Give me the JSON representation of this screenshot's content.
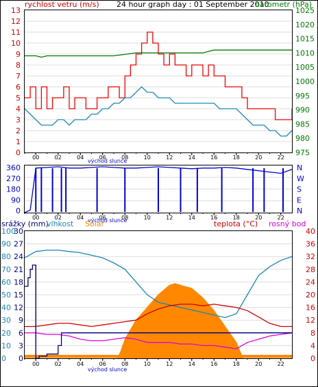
{
  "chart_data": [
    {
      "type": "line",
      "title": "24 hour graph day : 01 September 2010",
      "y_label_left": "rychlost vetru (m/s)",
      "y_label_right": "barometr (hPa)",
      "x_label": "východ slunce",
      "x_ticks": [
        "00",
        "02",
        "04",
        "06",
        "08",
        "10",
        "12",
        "14",
        "16",
        "18",
        "20",
        "22"
      ],
      "ylim_left": [
        0,
        13
      ],
      "ylim_right": [
        975,
        1025
      ],
      "y_ticks_left": [
        "0",
        "1",
        "2",
        "3",
        "4",
        "5",
        "6",
        "7",
        "8",
        "9",
        "10",
        "11",
        "12",
        "13"
      ],
      "y_ticks_right": [
        "975",
        "980",
        "985",
        "990",
        "995",
        "1000",
        "1005",
        "1010",
        "1015",
        "1020",
        "1025"
      ],
      "series": [
        {
          "color": "#ee0000",
          "step": true,
          "x": [
            23.0,
            23.5,
            0,
            0.5,
            1,
            1.5,
            2,
            2.5,
            3,
            3.5,
            4,
            4.5,
            5,
            5.5,
            6,
            6.5,
            7,
            7.5,
            8,
            8.5,
            9,
            9.5,
            10,
            10.5,
            11,
            11.5,
            12,
            12.5,
            13,
            13.5,
            14,
            14.5,
            15,
            15.5,
            16,
            16.5,
            17,
            17.5,
            18,
            18.5,
            19,
            19.5,
            20,
            20.5,
            21,
            21.5,
            22,
            22.5,
            23.0
          ],
          "values": [
            5,
            6,
            4,
            6,
            4,
            5,
            5,
            6,
            4,
            5,
            5,
            4,
            4,
            5,
            5,
            6,
            6,
            5,
            7,
            8,
            9,
            10,
            11,
            10,
            9,
            8,
            9,
            8,
            8,
            7,
            8,
            8,
            7,
            8,
            7,
            7,
            6,
            6,
            6,
            5,
            4,
            4,
            4,
            4,
            4,
            3,
            3,
            3,
            4
          ]
        },
        {
          "color": "#1a86b5",
          "x": [
            23.0,
            23.5,
            0,
            0.5,
            1,
            1.5,
            2,
            2.5,
            3,
            3.5,
            4,
            4.5,
            5,
            5.5,
            6,
            6.5,
            7,
            7.5,
            8,
            8.5,
            9,
            9.5,
            10,
            10.5,
            11,
            11.5,
            12,
            12.5,
            13,
            13.5,
            14,
            14.5,
            15,
            15.5,
            16,
            16.5,
            17,
            17.5,
            18,
            18.5,
            19,
            19.5,
            20,
            20.5,
            21,
            21.5,
            22,
            22.5,
            23.0
          ],
          "values": [
            4,
            3.5,
            3,
            2.5,
            2.5,
            2.5,
            3,
            3,
            2.5,
            3,
            3,
            3,
            3.5,
            3.5,
            4,
            4,
            4.5,
            4.5,
            5,
            5,
            5.5,
            6,
            5.5,
            5.5,
            5,
            5,
            5,
            4.5,
            4.5,
            4.5,
            4.5,
            4.5,
            4.5,
            4.5,
            4.5,
            4,
            4,
            4,
            4,
            3.5,
            3,
            2.5,
            2.5,
            2.5,
            2,
            2,
            1.5,
            1.5,
            2
          ]
        },
        {
          "color": "#007700",
          "axis": "right",
          "x": [
            23.0,
            0.0,
            0.5,
            1.0,
            7.0,
            8.0,
            9.0,
            15.0,
            15.5,
            16.0,
            20.5,
            21.0,
            23.0
          ],
          "values": [
            1009,
            1009,
            1008.5,
            1009,
            1009,
            1009.5,
            1010,
            1010,
            1010.5,
            1011,
            1011,
            1011,
            1011
          ]
        }
      ]
    },
    {
      "type": "line",
      "y_ticks_left": [
        "0",
        "90",
        "180",
        "270",
        "360"
      ],
      "y_ticks_right": [
        "N",
        "E",
        "S",
        "W",
        "N"
      ],
      "ylim": [
        0,
        360
      ],
      "x_label": "východ slunce",
      "x_ticks": [
        "00",
        "02",
        "04",
        "06",
        "08",
        "10",
        "12",
        "14",
        "16",
        "18",
        "20",
        "22"
      ],
      "series": [
        {
          "color": "#0000cc",
          "x": [
            23.0,
            23.5,
            0,
            1,
            2,
            3,
            4,
            5,
            6,
            7,
            8,
            9,
            10,
            11,
            12,
            13,
            14,
            15,
            16,
            17,
            18,
            19,
            20,
            21,
            22,
            23.0
          ],
          "values": [
            0,
            20,
            340,
            345,
            350,
            340,
            340,
            345,
            350,
            345,
            340,
            340,
            345,
            350,
            345,
            340,
            335,
            340,
            340,
            345,
            340,
            330,
            320,
            310,
            300,
            330
          ],
          "dips": [
            0.0,
            0.5,
            1.5,
            2.3,
            2.7,
            5.5,
            8.0,
            11.0,
            13.0,
            14.5,
            16.7,
            19.5,
            20.5,
            22.2
          ]
        }
      ]
    },
    {
      "type": "area",
      "legend": [
        "srážky (mm)",
        "vlhkost",
        "Solar",
        "teplota (°C)",
        "rosný bod"
      ],
      "x_label": "východ slunce",
      "x_ticks": [
        "00",
        "02",
        "04",
        "06",
        "08",
        "10",
        "12",
        "14",
        "16",
        "18",
        "20",
        "22"
      ],
      "y_ticks_rain": [
        "0",
        "3",
        "6",
        "9",
        "12",
        "15",
        "18",
        "21",
        "24",
        "27",
        "30"
      ],
      "y_ticks_humidity": [
        "0",
        "10",
        "20",
        "30",
        "40",
        "50",
        "60",
        "70",
        "80",
        "90",
        "100"
      ],
      "y_ticks_temp": [
        "0",
        "4",
        "8",
        "12",
        "16",
        "20",
        "24",
        "28",
        "32",
        "36",
        "40"
      ],
      "ylim_rain": [
        0,
        30
      ],
      "ylim_humidity": [
        0,
        100
      ],
      "ylim_temp": [
        0,
        40
      ],
      "series": [
        {
          "name": "vlhkost",
          "color": "#1a86b5",
          "axis": "humidity",
          "x": [
            23.0,
            0,
            1,
            2,
            3,
            4,
            5,
            6,
            7,
            8,
            9,
            10,
            11,
            12,
            13,
            14,
            15,
            16,
            17,
            18,
            19,
            20,
            21,
            22,
            23.0
          ],
          "values": [
            79,
            84,
            85,
            85,
            84,
            83,
            81,
            79,
            75,
            70,
            60,
            50,
            44,
            42,
            40,
            38,
            36,
            34,
            32,
            35,
            50,
            65,
            72,
            77,
            80
          ]
        },
        {
          "name": "teplota",
          "color": "#cc0000",
          "axis": "temp",
          "x": [
            23.0,
            0,
            1,
            2,
            3,
            4,
            5,
            6,
            7,
            8,
            9,
            10,
            11,
            12,
            13,
            14,
            15,
            16,
            17,
            18,
            19,
            20,
            21,
            22,
            23.0
          ],
          "values": [
            10,
            10,
            10.5,
            11,
            11,
            10.5,
            10,
            10.5,
            11,
            11.5,
            12,
            14,
            15.5,
            16.5,
            17,
            17,
            16.5,
            17,
            16.5,
            16,
            15,
            13,
            11,
            10,
            10
          ]
        },
        {
          "name": "rosný bod",
          "color": "#dd00dd",
          "axis": "temp",
          "x": [
            23.0,
            0,
            1,
            2,
            3,
            4,
            5,
            6,
            7,
            8,
            9,
            10,
            11,
            12,
            13,
            14,
            15,
            16,
            17,
            18,
            19,
            20,
            21,
            22,
            23.0
          ],
          "values": [
            8,
            8,
            7.5,
            7.5,
            7,
            6,
            5.5,
            5.5,
            6,
            6.5,
            6,
            5,
            5,
            5,
            4.5,
            4.5,
            4,
            4,
            3.5,
            3,
            5,
            6,
            7,
            7.5,
            8
          ]
        },
        {
          "name": "srážky",
          "color": "#000080",
          "axis": "rain",
          "x": [
            23.0,
            23.3,
            23.5,
            23.7,
            0.0,
            0.3,
            1.0,
            2.0,
            2.3,
            2.6,
            3.0,
            23.0
          ],
          "values": [
            17,
            19,
            21,
            22,
            0,
            0.5,
            1,
            3,
            6,
            6,
            6,
            6
          ]
        },
        {
          "name": "Solar",
          "color": "#ff8800",
          "axis": "temp",
          "x": [
            23.0,
            7.3,
            7.6,
            8.0,
            9.0,
            10.0,
            11.0,
            12.0,
            12.5,
            13.0,
            14.0,
            15.0,
            16.0,
            17.0,
            18.0,
            18.6,
            23.0
          ],
          "values": [
            0,
            0,
            2,
            6,
            12,
            16,
            20,
            23,
            23.5,
            23,
            22,
            19,
            15,
            10,
            5,
            0,
            0
          ]
        }
      ]
    }
  ]
}
